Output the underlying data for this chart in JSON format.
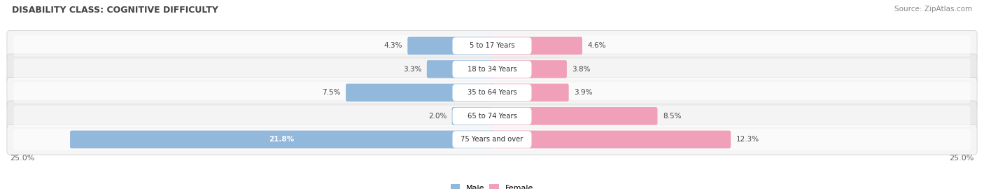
{
  "title": "DISABILITY CLASS: COGNITIVE DIFFICULTY",
  "source": "Source: ZipAtlas.com",
  "categories": [
    "5 to 17 Years",
    "18 to 34 Years",
    "35 to 64 Years",
    "65 to 74 Years",
    "75 Years and over"
  ],
  "male_values": [
    4.3,
    3.3,
    7.5,
    2.0,
    21.8
  ],
  "female_values": [
    4.6,
    3.8,
    3.9,
    8.5,
    12.3
  ],
  "max_val": 25.0,
  "male_color": "#92b8dc",
  "female_color": "#f0a0b8",
  "row_bg_colors": [
    "#f5f5f5",
    "#eaeaea"
  ],
  "row_stripe_color": "#d8d8d8",
  "label_color": "#444444",
  "title_color": "#444444",
  "center_label_color": "#333333",
  "center_box_color": "#ffffff",
  "bottom_label_color": "#666666"
}
